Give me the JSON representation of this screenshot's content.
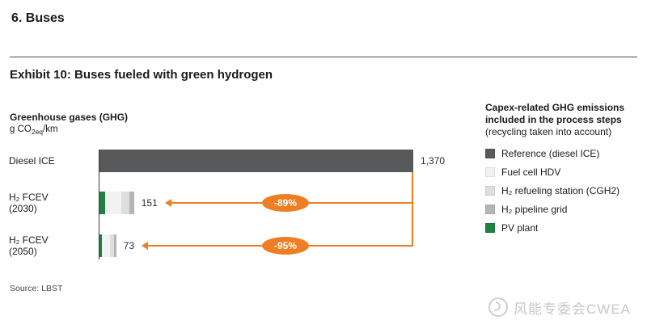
{
  "header": {
    "section_title": "6. Buses",
    "exhibit_title": "Exhibit 10: Buses fueled with green hydrogen"
  },
  "chart_data": {
    "type": "bar",
    "orientation": "horizontal",
    "title": "Greenhouse gases (GHG)",
    "unit": "g CO2eq/km",
    "unit_parts": [
      "g CO",
      "2eq",
      "/km"
    ],
    "xlim": [
      0,
      1370
    ],
    "categories": [
      "Diesel ICE",
      "H₂ FCEV (2030)",
      "H₂ FCEV (2050)"
    ],
    "values": [
      1370,
      151,
      73
    ],
    "rows": [
      {
        "label_lines": [
          "Diesel ICE"
        ],
        "value": 1370,
        "value_label": "1,370",
        "type": "solid",
        "color_key": "reference"
      },
      {
        "label_lines": [
          "H₂ FCEV",
          "(2030)"
        ],
        "value": 151,
        "value_label": "151",
        "badge": "-89%",
        "segments": [
          {
            "key": "pv_plant",
            "value": 25
          },
          {
            "key": "fuel_cell_hdv",
            "value": 70
          },
          {
            "key": "refueling_station",
            "value": 35
          },
          {
            "key": "pipeline_grid",
            "value": 21
          }
        ]
      },
      {
        "label_lines": [
          "H₂ FCEV",
          "(2050)"
        ],
        "value": 73,
        "value_label": "73",
        "badge": "-95%",
        "segments": [
          {
            "key": "pv_plant",
            "value": 12
          },
          {
            "key": "fuel_cell_hdv",
            "value": 35
          },
          {
            "key": "refueling_station",
            "value": 16
          },
          {
            "key": "pipeline_grid",
            "value": 10
          }
        ]
      }
    ]
  },
  "legend": {
    "title": "Capex-related GHG emissions included in the process steps",
    "subtitle": "(recycling taken into account)",
    "items": [
      {
        "key": "reference",
        "label": "Reference (diesel ICE)",
        "color": "#58595b"
      },
      {
        "key": "fuel_cell_hdv",
        "label": "Fuel cell HDV",
        "color": "#f2f2f2"
      },
      {
        "key": "refueling_station",
        "label": "H₂ refueling station (CGH2)",
        "color": "#dedede"
      },
      {
        "key": "pipeline_grid",
        "label": "H₂ pipeline grid",
        "color": "#b5b5b5"
      },
      {
        "key": "pv_plant",
        "label": "PV plant",
        "color": "#1e8245"
      }
    ]
  },
  "colors": {
    "accent_orange": "#ee7d23",
    "bar_reference": "#58595b"
  },
  "footer": {
    "source": "Source: LBST"
  },
  "watermark": {
    "text": "风能专委会CWEA"
  }
}
